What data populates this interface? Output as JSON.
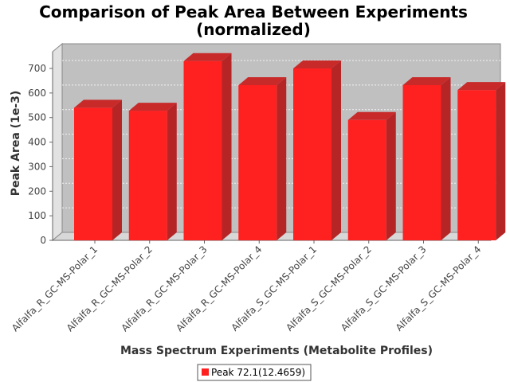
{
  "chart_data": {
    "type": "bar",
    "title": "Comparison of Peak Area Between Experiments",
    "subtitle": "(normalized)",
    "xlabel": "Mass Spectrum Experiments (Metabolite Profiles)",
    "ylabel": "Peak Area (1e-3)",
    "ylim": [
      0,
      750
    ],
    "yticks": [
      "0",
      "100",
      "200",
      "300",
      "400",
      "500",
      "600",
      "700"
    ],
    "categories": [
      "Alfalfa_R_GC-MS-Polar_1",
      "Alfalfa_R_GC-MS-Polar_2",
      "Alfalfa_R_GC-MS-Polar_3",
      "Alfalfa_R_GC-MS-Polar_4",
      "Alfalfa_S_GC-MS-Polar_1",
      "Alfalfa_S_GC-MS-Polar_2",
      "Alfalfa_S_GC-MS-Polar_3",
      "Alfalfa_S_GC-MS-Polar_4"
    ],
    "series": [
      {
        "name": "Peak 72.1(12.4659)",
        "color": "#ff2020",
        "values": [
          540,
          528,
          730,
          632,
          700,
          490,
          632,
          612
        ]
      }
    ],
    "grid": true,
    "legend_position": "bottom",
    "style": "3d"
  }
}
